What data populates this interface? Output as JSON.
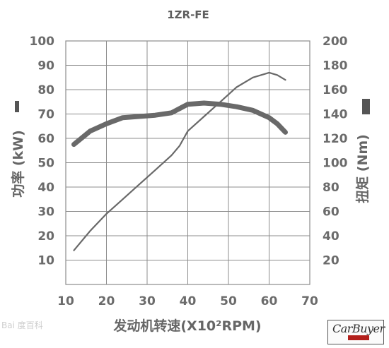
{
  "chart_data": {
    "type": "line",
    "title": "1ZR-FE",
    "xlabel": "发动机转速(X10²RPM)",
    "x_axis": {
      "range": [
        10,
        70
      ],
      "ticks": [
        10,
        20,
        30,
        40,
        50,
        60,
        70
      ]
    },
    "y_left": {
      "label": "功率 (kW)",
      "legend_glyph": "thin-line",
      "range": [
        0,
        100
      ],
      "ticks": [
        10,
        20,
        30,
        40,
        50,
        60,
        70,
        80,
        90,
        100
      ]
    },
    "y_right": {
      "label": "扭矩 (Nm)",
      "legend_glyph": "thick-line",
      "range": [
        0,
        200
      ],
      "ticks": [
        20,
        40,
        60,
        80,
        100,
        120,
        140,
        160,
        180,
        200
      ]
    },
    "grid": true,
    "series": [
      {
        "axis": "left",
        "style": "thin",
        "points": [
          [
            12,
            14
          ],
          [
            16,
            22
          ],
          [
            20,
            29
          ],
          [
            24,
            35
          ],
          [
            28,
            41
          ],
          [
            32,
            47
          ],
          [
            36,
            53
          ],
          [
            38,
            57
          ],
          [
            40,
            63
          ],
          [
            44,
            69
          ],
          [
            48,
            75
          ],
          [
            52,
            81
          ],
          [
            56,
            85
          ],
          [
            60,
            87
          ],
          [
            62,
            86
          ],
          [
            64,
            84
          ]
        ]
      },
      {
        "axis": "right",
        "style": "thick",
        "points": [
          [
            12,
            115
          ],
          [
            16,
            126
          ],
          [
            20,
            132
          ],
          [
            24,
            137
          ],
          [
            28,
            138
          ],
          [
            32,
            139
          ],
          [
            36,
            141
          ],
          [
            40,
            148
          ],
          [
            44,
            149
          ],
          [
            48,
            148
          ],
          [
            52,
            146
          ],
          [
            56,
            143
          ],
          [
            60,
            137
          ],
          [
            62,
            132
          ],
          [
            64,
            125
          ]
        ]
      }
    ]
  },
  "watermark": {
    "text": "Bai 度百科"
  },
  "logo": {
    "text": "CarBuyer"
  },
  "colors": {
    "line": "#696969",
    "grid": "#8c8c8c",
    "text": "#666666",
    "logo_accent": "#b3201c"
  }
}
